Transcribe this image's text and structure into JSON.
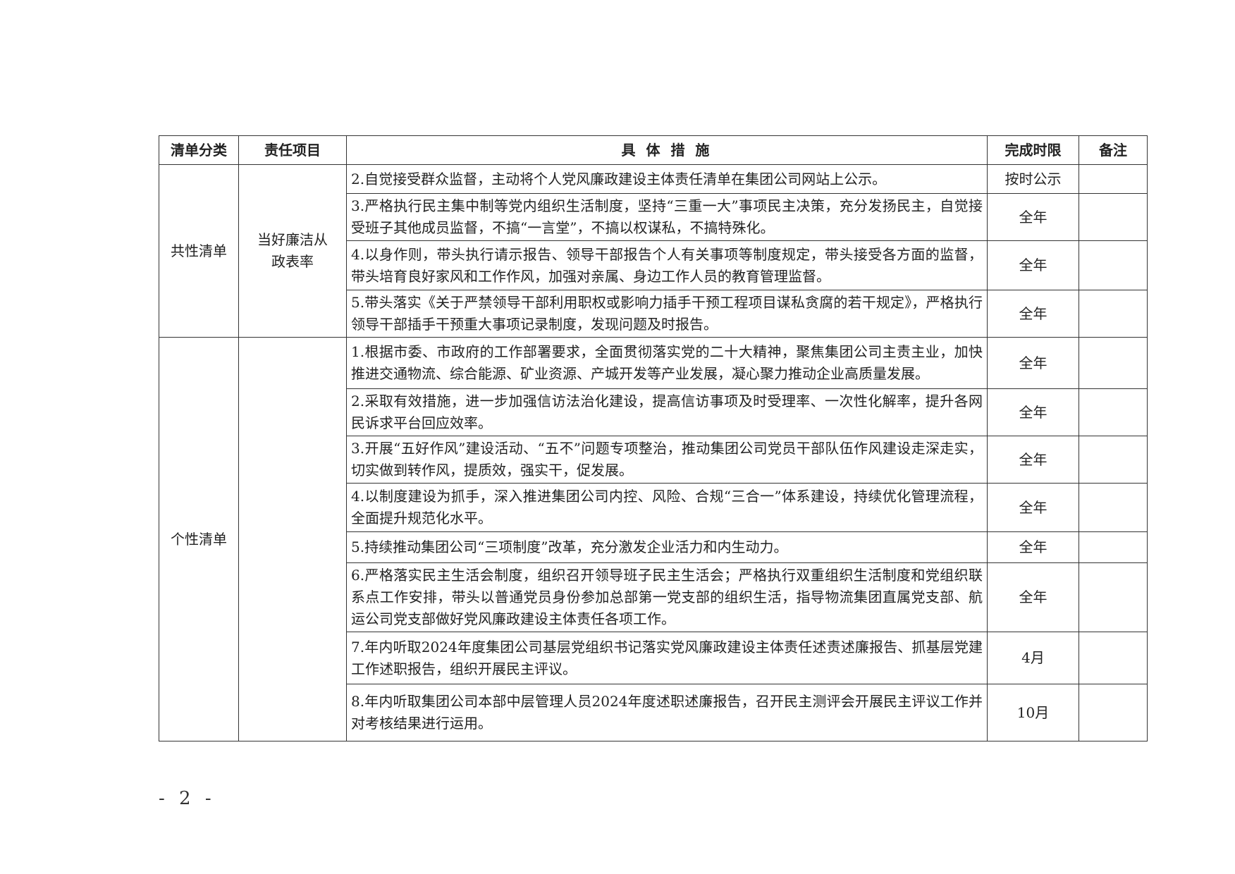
{
  "headers": [
    "清单分类",
    "责任项目",
    "具 体 措 施",
    "完成时限",
    "备注"
  ],
  "groups": [
    {
      "category": "共性清单",
      "project": "当好廉洁从政表率",
      "rows": [
        {
          "measure": "2.自觉接受群众监督，主动将个人党风廉政建设主体责任清单在集团公司网站上公示。",
          "deadline": "按时公示",
          "note": ""
        },
        {
          "measure": "3.严格执行民主集中制等党内组织生活制度，坚持“三重一大”事项民主决策，充分发扬民主，自觉接受班子其他成员监督，不搞“一言堂”，不搞以权谋私，不搞特殊化。",
          "deadline": "全年",
          "note": ""
        },
        {
          "measure": "4.以身作则，带头执行请示报告、领导干部报告个人有关事项等制度规定，带头接受各方面的监督，带头培育良好家风和工作作风，加强对亲属、身边工作人员的教育管理监督。",
          "deadline": "全年",
          "note": ""
        },
        {
          "measure": "5.带头落实《关于严禁领导干部利用职权或影响力插手干预工程项目谋私贪腐的若干规定》，严格执行领导干部插手干预重大事项记录制度，发现问题及时报告。",
          "deadline": "全年",
          "note": ""
        }
      ]
    },
    {
      "category": "个性清单",
      "project": "",
      "rows": [
        {
          "measure": "1.根据市委、市政府的工作部署要求，全面贯彻落实党的二十大精神，聚焦集团公司主责主业，加快推进交通物流、综合能源、矿业资源、产城开发等产业发展，凝心聚力推动企业高质量发展。",
          "deadline": "全年",
          "note": ""
        },
        {
          "measure": "2.采取有效措施，进一步加强信访法治化建设，提高信访事项及时受理率、一次性化解率，提升各网民诉求平台回应效率。",
          "deadline": "全年",
          "note": ""
        },
        {
          "measure": "3.开展“五好作风”建设活动、“五不”问题专项整治，推动集团公司党员干部队伍作风建设走深走实，切实做到转作风，提质效，强实干，促发展。",
          "deadline": "全年",
          "note": ""
        },
        {
          "measure": "4.以制度建设为抓手，深入推进集团公司内控、风险、合规“三合一”体系建设，持续优化管理流程，全面提升规范化水平。",
          "deadline": "全年",
          "note": ""
        },
        {
          "measure": "5.持续推动集团公司“三项制度”改革，充分激发企业活力和内生动力。",
          "deadline": "全年",
          "note": ""
        },
        {
          "measure": "6.严格落实民主生活会制度，组织召开领导班子民主生活会；严格执行双重组织生活制度和党组织联系点工作安排，带头以普通党员身份参加总部第一党支部的组织生活，指导物流集团直属党支部、航运公司党支部做好党风廉政建设主体责任各项工作。",
          "deadline": "全年",
          "note": ""
        },
        {
          "measure": "7.年内听取2024年度集团公司基层党组织书记落实党风廉政建设主体责任述责述廉报告、抓基层党建工作述职报告，组织开展民主评议。",
          "deadline": "4月",
          "note": ""
        },
        {
          "measure": "8.年内听取集团公司本部中层管理人员2024年度述职述廉报告，召开民主测评会开展民主评议工作并对考核结果进行运用。",
          "deadline": "10月",
          "note": ""
        }
      ]
    }
  ],
  "page_number": "- 2 -"
}
